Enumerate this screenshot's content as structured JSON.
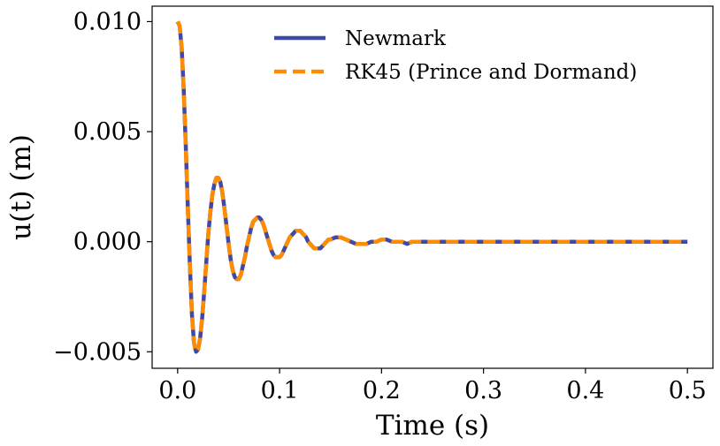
{
  "chart_data": {
    "type": "line",
    "title": "",
    "xlabel": "Time (s)",
    "ylabel": "u(t) (m)",
    "xlim": [
      -0.025,
      0.525
    ],
    "ylim": [
      -0.00575,
      0.0107
    ],
    "x_ticks": [
      0.0,
      0.1,
      0.2,
      0.3,
      0.4,
      0.5
    ],
    "x_tick_labels": [
      "0.0",
      "0.1",
      "0.2",
      "0.3",
      "0.4",
      "0.5"
    ],
    "y_ticks": [
      -0.005,
      0.0,
      0.005,
      0.01
    ],
    "y_tick_labels": [
      "−0.005",
      "0.000",
      "0.005",
      "0.010"
    ],
    "grid": false,
    "legend_position": "top-right",
    "series": [
      {
        "name": "Newmark",
        "color": "#3f4aa8",
        "style": "solid",
        "x": [
          0.0,
          0.002,
          0.004,
          0.006,
          0.008,
          0.01,
          0.012,
          0.014,
          0.016,
          0.018,
          0.02,
          0.022,
          0.024,
          0.026,
          0.028,
          0.03,
          0.032,
          0.034,
          0.036,
          0.038,
          0.04,
          0.042,
          0.044,
          0.046,
          0.048,
          0.05,
          0.052,
          0.054,
          0.056,
          0.058,
          0.06,
          0.062,
          0.064,
          0.066,
          0.068,
          0.07,
          0.072,
          0.074,
          0.076,
          0.078,
          0.08,
          0.082,
          0.084,
          0.086,
          0.088,
          0.09,
          0.092,
          0.094,
          0.096,
          0.098,
          0.1,
          0.102,
          0.104,
          0.106,
          0.108,
          0.11,
          0.112,
          0.114,
          0.116,
          0.118,
          0.12,
          0.122,
          0.124,
          0.126,
          0.128,
          0.13,
          0.132,
          0.134,
          0.136,
          0.138,
          0.14,
          0.142,
          0.144,
          0.146,
          0.148,
          0.15,
          0.155,
          0.16,
          0.165,
          0.17,
          0.175,
          0.18,
          0.185,
          0.19,
          0.195,
          0.2,
          0.205,
          0.21,
          0.215,
          0.22,
          0.225,
          0.23,
          0.235,
          0.24,
          0.245,
          0.25,
          0.255,
          0.26,
          0.265,
          0.27,
          0.275,
          0.28,
          0.29,
          0.3,
          0.32,
          0.34,
          0.36,
          0.38,
          0.4,
          0.42,
          0.44,
          0.46,
          0.48,
          0.5
        ],
        "y": [
          0.01,
          0.0098,
          0.0088,
          0.0069,
          0.0044,
          0.0016,
          -0.0011,
          -0.0033,
          -0.0046,
          -0.005,
          -0.0049,
          -0.0044,
          -0.0035,
          -0.0023,
          -0.001,
          0.0003,
          0.0013,
          0.0021,
          0.0026,
          0.0029,
          0.0029,
          0.0027,
          0.0022,
          0.0015,
          0.0007,
          -0.0001,
          -0.0008,
          -0.0013,
          -0.0016,
          -0.0017,
          -0.0017,
          -0.0015,
          -0.0011,
          -0.0007,
          -0.0002,
          0.0002,
          0.0006,
          0.0009,
          0.001,
          0.0011,
          0.0011,
          0.001,
          0.0008,
          0.0005,
          0.0002,
          -0.0001,
          -0.0004,
          -0.0006,
          -0.0007,
          -0.0007,
          -0.0007,
          -0.0006,
          -0.0004,
          -0.0002,
          0.0,
          0.0002,
          0.0003,
          0.0004,
          0.0005,
          0.0005,
          0.0005,
          0.0004,
          0.0003,
          0.0002,
          0.0,
          -0.0001,
          -0.0002,
          -0.0003,
          -0.0003,
          -0.0003,
          -0.0003,
          -0.0002,
          -0.0001,
          0.0,
          0.0001,
          0.0001,
          0.0002,
          0.0002,
          0.0001,
          0.0,
          -0.0001,
          -0.0001,
          -0.0001,
          0.0,
          0.0,
          0.0001,
          0.0001,
          0.0,
          0.0,
          0.0,
          -0.0001,
          0.0,
          0.0,
          0.0,
          0.0,
          0.0,
          0.0,
          0.0,
          0.0,
          0.0,
          0.0,
          0.0,
          0.0,
          0.0,
          0.0,
          0.0,
          0.0,
          0.0,
          0.0,
          0.0,
          0.0,
          0.0,
          0.0,
          0.0
        ]
      },
      {
        "name": "RK45 (Prince and Dormand)",
        "color": "#ff8c00",
        "style": "dashed",
        "same_as_series": 0
      }
    ]
  }
}
